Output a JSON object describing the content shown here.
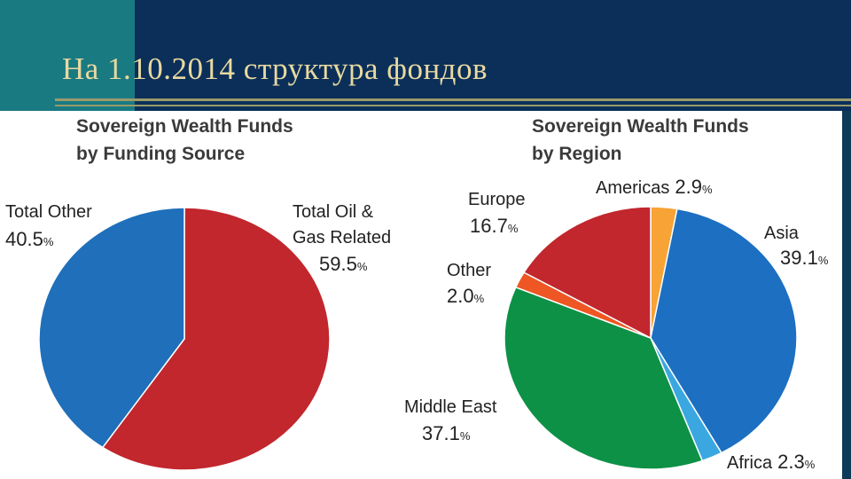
{
  "slide": {
    "title": "На 1.10.2014 структура фондов"
  },
  "chart_data": [
    {
      "type": "pie",
      "title_line1": "Sovereign Wealth Funds",
      "title_line2": "by Funding Source",
      "slices": [
        {
          "label": "Total Oil &",
          "label2": "Gas Related",
          "value": 59.5,
          "value_text": "59.5",
          "color": "#c1272d"
        },
        {
          "label": "Total Other",
          "value": 40.5,
          "value_text": "40.5",
          "color": "#1f6fba"
        }
      ]
    },
    {
      "type": "pie",
      "title_line1": "Sovereign Wealth Funds",
      "title_line2": "by Region",
      "slices": [
        {
          "label": "Americas",
          "value": 2.9,
          "value_text": "2.9",
          "color": "#f7a335"
        },
        {
          "label": "Asia",
          "value": 39.1,
          "value_text": "39.1",
          "color": "#1c6fc1"
        },
        {
          "label": "Africa",
          "value": 2.3,
          "value_text": "2.3",
          "color": "#3aa7e0"
        },
        {
          "label": "Middle East",
          "value": 37.1,
          "value_text": "37.1",
          "color": "#0d9146"
        },
        {
          "label": "Other",
          "value": 2.0,
          "value_text": "2.0",
          "color": "#ee5623"
        },
        {
          "label": "Europe",
          "value": 16.7,
          "value_text": "16.7",
          "color": "#c1272d"
        }
      ]
    }
  ],
  "percent_sign": "%"
}
